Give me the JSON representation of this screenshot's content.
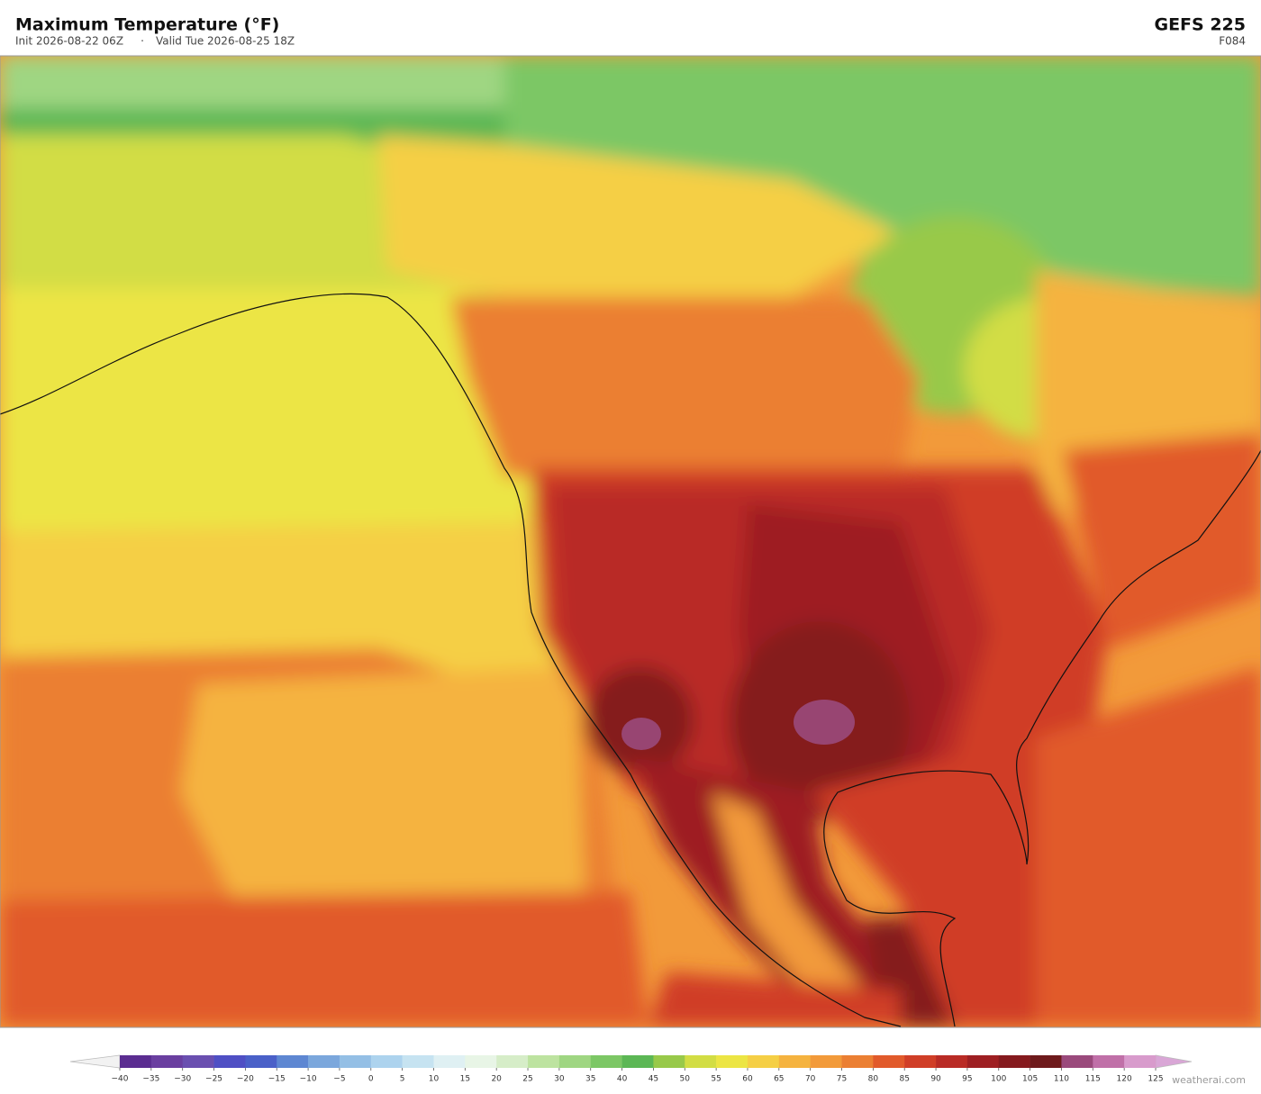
{
  "header": {
    "title": "Maximum Temperature  (°F)",
    "init": "Init 2026-08-22 06Z",
    "separator": "·",
    "valid": "Valid Tue 2026-08-25 18Z",
    "model": "GEFS  225",
    "forecast_hour": "F084"
  },
  "colorbar": {
    "ticks": [
      {
        "value": -40,
        "label": "−40"
      },
      {
        "value": -35,
        "label": "−35"
      },
      {
        "value": -30,
        "label": "−30"
      },
      {
        "value": -25,
        "label": "−25"
      },
      {
        "value": -20,
        "label": "−20"
      },
      {
        "value": -15,
        "label": "−15"
      },
      {
        "value": -10,
        "label": "−10"
      },
      {
        "value": -5,
        "label": "−5"
      },
      0,
      5,
      10,
      15,
      20,
      25,
      30,
      35,
      40,
      45,
      50,
      55,
      60,
      65,
      70,
      75,
      80,
      85,
      90,
      95,
      100,
      105,
      110,
      115,
      120,
      125
    ],
    "colors": [
      "#5b2d91",
      "#6a3fa0",
      "#6a4fb0",
      "#4f4fc4",
      "#4a60c8",
      "#5e87d2",
      "#7ba7dc",
      "#94bfe5",
      "#add3ee",
      "#c6e3f1",
      "#dff0f3",
      "#e8f5e6",
      "#d6edc8",
      "#bde3a0",
      "#9fd682",
      "#7cc765",
      "#5cb755",
      "#98c94a",
      "#d2dd44",
      "#ece544",
      "#f5cf45",
      "#f5b33f",
      "#f29a3a",
      "#eb7f33",
      "#e15a2b",
      "#d03e27",
      "#b92b25",
      "#9e1f22",
      "#851a1e",
      "#6e1a1c",
      "#9a4a7c",
      "#c070a8",
      "#d89bcc"
    ],
    "under_color": "#f2f2f2",
    "over_color": "#d9a6d6"
  },
  "watermark": "weatherai.com"
}
